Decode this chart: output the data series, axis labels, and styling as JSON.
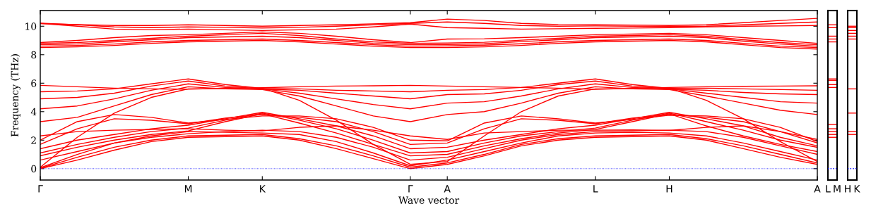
{
  "chart_data": [
    {
      "type": "line",
      "xlabel": "Wave vector",
      "ylabel": "Frequency (THz)",
      "tick_labels": true,
      "categories": [
        "Γ",
        null,
        null,
        null,
        "M",
        null,
        "K",
        null,
        null,
        null,
        "Γ",
        "A",
        null,
        null,
        null,
        "L",
        null,
        "H",
        null,
        null,
        null,
        "A"
      ],
      "ylim": [
        -0.8,
        11.1
      ],
      "yticks": [
        0,
        2,
        4,
        6,
        8,
        10
      ],
      "ref_lines": [
        {
          "axis": "y",
          "value": 0,
          "color": "#0000ff",
          "line_style": "dotted"
        }
      ],
      "series": [
        {
          "color": "#ff0000",
          "values": [
            0,
            0.6,
            1.3,
            1.9,
            2.2,
            2.25,
            2.3,
            2.0,
            1.4,
            0.7,
            0,
            0.3,
            0.9,
            1.6,
            2.0,
            2.2,
            2.25,
            2.3,
            2.0,
            1.4,
            0.8,
            0.3
          ]
        },
        {
          "color": "#ff0000",
          "values": [
            0.03,
            0.8,
            1.5,
            2.0,
            2.3,
            2.35,
            2.4,
            2.1,
            1.6,
            0.9,
            0.1,
            0.4,
            1.0,
            1.7,
            2.1,
            2.3,
            2.35,
            2.4,
            2.1,
            1.6,
            1.0,
            0.4
          ]
        },
        {
          "color": "#ff0000",
          "values": [
            0.06,
            1.0,
            1.8,
            2.3,
            2.6,
            2.55,
            2.5,
            2.4,
            1.9,
            1.1,
            0.2,
            0.6,
            1.2,
            1.8,
            2.3,
            2.5,
            2.55,
            2.5,
            2.3,
            1.8,
            1.2,
            0.6
          ]
        },
        {
          "color": "#ff0000",
          "values": [
            0.6,
            1.2,
            1.8,
            2.2,
            2.45,
            2.6,
            2.7,
            2.6,
            2.2,
            1.5,
            0.6,
            0.8,
            1.4,
            2.0,
            2.4,
            2.6,
            2.65,
            2.7,
            2.6,
            2.2,
            1.6,
            1.0
          ]
        },
        {
          "color": "#ff0000",
          "values": [
            0.9,
            1.5,
            2.0,
            2.4,
            2.65,
            3.3,
            3.85,
            3.2,
            2.5,
            1.7,
            0.9,
            1.0,
            1.6,
            2.1,
            2.5,
            2.75,
            3.3,
            3.85,
            3.0,
            2.3,
            1.7,
            1.2
          ]
        },
        {
          "color": "#ff0000",
          "values": [
            1.1,
            1.7,
            2.2,
            2.6,
            2.85,
            3.4,
            3.9,
            3.4,
            2.8,
            2.0,
            1.1,
            1.2,
            1.8,
            2.3,
            2.6,
            2.85,
            3.4,
            3.9,
            3.3,
            2.7,
            2.0,
            1.5
          ]
        },
        {
          "color": "#ff0000",
          "values": [
            1.4,
            2.0,
            2.4,
            2.8,
            3.05,
            3.5,
            3.95,
            3.5,
            3.0,
            2.3,
            1.4,
            1.5,
            2.0,
            2.4,
            2.8,
            3.05,
            3.5,
            3.95,
            3.5,
            3.0,
            2.2,
            1.6
          ]
        },
        {
          "color": "#ff0000",
          "values": [
            1.7,
            2.8,
            3.5,
            3.4,
            3.15,
            3.55,
            3.8,
            3.6,
            3.3,
            2.6,
            1.7,
            1.8,
            2.8,
            3.5,
            3.4,
            3.15,
            3.55,
            3.8,
            3.6,
            3.3,
            2.6,
            1.8
          ]
        },
        {
          "color": "#ff0000",
          "values": [
            2.0,
            3.3,
            3.8,
            3.6,
            3.2,
            3.45,
            3.7,
            3.7,
            3.5,
            2.9,
            2.0,
            1.95,
            3.2,
            3.7,
            3.5,
            3.2,
            3.45,
            3.75,
            3.7,
            3.5,
            2.9,
            1.9
          ]
        },
        {
          "color": "#ff0000",
          "values": [
            2.3,
            2.6,
            2.7,
            2.75,
            2.8,
            2.7,
            2.65,
            2.9,
            3.0,
            2.7,
            2.3,
            2.05,
            2.5,
            2.6,
            2.7,
            2.7,
            2.72,
            2.68,
            2.9,
            3.0,
            2.6,
            2.05
          ]
        },
        {
          "color": "#ff0000",
          "values": [
            0.09,
            2.2,
            3.9,
            5.0,
            5.6,
            5.62,
            5.65,
            4.8,
            3.4,
            1.7,
            0.3,
            0.5,
            2.3,
            4.0,
            5.1,
            5.6,
            5.62,
            5.65,
            4.8,
            3.5,
            1.9,
            0.5
          ]
        },
        {
          "color": "#ff0000",
          "values": [
            3.3,
            3.6,
            4.4,
            5.2,
            5.75,
            5.6,
            5.55,
            5.1,
            4.4,
            3.7,
            3.3,
            3.8,
            4.0,
            4.6,
            5.3,
            5.75,
            5.6,
            5.55,
            5.1,
            4.6,
            4.1,
            3.8
          ]
        },
        {
          "color": "#ff0000",
          "values": [
            4.2,
            4.4,
            4.9,
            5.5,
            5.95,
            5.7,
            5.6,
            5.3,
            4.9,
            4.5,
            4.2,
            4.6,
            4.7,
            5.1,
            5.6,
            5.95,
            5.7,
            5.6,
            5.3,
            5.0,
            4.7,
            4.6
          ]
        },
        {
          "color": "#ff0000",
          "values": [
            4.9,
            5.0,
            5.3,
            5.8,
            6.15,
            5.8,
            5.58,
            5.5,
            5.3,
            5.1,
            4.9,
            5.2,
            5.25,
            5.5,
            5.9,
            6.15,
            5.8,
            5.58,
            5.5,
            5.35,
            5.25,
            5.2
          ]
        },
        {
          "color": "#ff0000",
          "values": [
            5.4,
            5.45,
            5.6,
            5.95,
            6.3,
            5.9,
            5.63,
            5.6,
            5.5,
            5.45,
            5.4,
            5.5,
            5.55,
            5.7,
            6.0,
            6.3,
            5.9,
            5.63,
            5.65,
            5.6,
            5.55,
            5.5
          ]
        },
        {
          "color": "#ff0000",
          "values": [
            5.85,
            5.75,
            5.65,
            5.6,
            5.58,
            5.64,
            5.68,
            5.75,
            5.8,
            5.82,
            5.85,
            5.8,
            5.75,
            5.7,
            5.65,
            5.57,
            5.64,
            5.7,
            5.75,
            5.78,
            5.8,
            5.82
          ]
        },
        {
          "color": "#ff0000",
          "values": [
            8.5,
            8.55,
            8.65,
            8.8,
            8.9,
            8.95,
            9.0,
            8.9,
            8.75,
            8.6,
            8.5,
            8.5,
            8.55,
            8.65,
            8.8,
            8.9,
            8.95,
            9.0,
            8.9,
            8.7,
            8.5,
            8.4
          ]
        },
        {
          "color": "#ff0000",
          "values": [
            8.6,
            8.65,
            8.75,
            8.9,
            9.0,
            9.05,
            9.1,
            9.0,
            8.85,
            8.7,
            8.6,
            8.62,
            8.67,
            8.77,
            8.9,
            9.0,
            9.05,
            9.1,
            9.0,
            8.8,
            8.6,
            8.5
          ]
        },
        {
          "color": "#ff0000",
          "values": [
            8.7,
            8.75,
            8.9,
            9.05,
            9.2,
            9.25,
            9.3,
            9.2,
            9.0,
            8.8,
            8.7,
            8.72,
            8.77,
            8.92,
            9.05,
            9.2,
            9.25,
            9.3,
            9.2,
            8.95,
            8.75,
            8.6
          ]
        },
        {
          "color": "#ff0000",
          "values": [
            8.8,
            8.85,
            9.0,
            9.15,
            9.3,
            9.4,
            9.5,
            9.35,
            9.1,
            8.9,
            8.8,
            8.82,
            8.87,
            9.02,
            9.15,
            9.3,
            9.35,
            9.4,
            9.3,
            9.05,
            8.85,
            8.7
          ]
        },
        {
          "color": "#ff0000",
          "values": [
            8.85,
            9.0,
            9.2,
            9.35,
            9.4,
            9.5,
            9.6,
            9.5,
            9.3,
            9.05,
            8.85,
            9.1,
            9.12,
            9.2,
            9.3,
            9.4,
            9.45,
            9.5,
            9.4,
            9.2,
            9.0,
            8.8
          ]
        },
        {
          "color": "#ff0000",
          "values": [
            10.2,
            10.0,
            9.8,
            9.75,
            9.8,
            9.75,
            9.7,
            9.75,
            9.8,
            9.95,
            10.15,
            9.9,
            9.85,
            9.8,
            9.82,
            9.85,
            9.87,
            9.9,
            9.95,
            10.0,
            10.02,
            10.05
          ]
        },
        {
          "color": "#ff0000",
          "values": [
            10.22,
            10.1,
            9.95,
            9.9,
            9.95,
            9.92,
            9.88,
            9.92,
            10.0,
            10.1,
            10.2,
            10.3,
            10.2,
            10.05,
            10.0,
            10.02,
            10.0,
            9.98,
            10.0,
            10.1,
            10.2,
            10.3
          ]
        },
        {
          "color": "#ff0000",
          "values": [
            10.18,
            10.12,
            10.05,
            10.05,
            10.1,
            10.05,
            10.0,
            10.05,
            10.1,
            10.17,
            10.25,
            10.5,
            10.4,
            10.2,
            10.12,
            10.1,
            10.08,
            10.05,
            10.1,
            10.25,
            10.4,
            10.55
          ]
        }
      ]
    },
    {
      "type": "line",
      "tick_labels": "x",
      "categories": [
        "L",
        "M"
      ],
      "ylim": [
        -0.8,
        11.1
      ],
      "ref_lines": [
        {
          "axis": "y",
          "value": 0,
          "color": "#0000ff",
          "line_style": "dotted"
        }
      ],
      "series": [
        {
          "color": "#ff0000",
          "values": [
            2.2,
            2.2
          ]
        },
        {
          "color": "#ff0000",
          "values": [
            2.4,
            2.4
          ]
        },
        {
          "color": "#ff0000",
          "values": [
            2.6,
            2.6
          ]
        },
        {
          "color": "#ff0000",
          "values": [
            2.8,
            2.8
          ]
        },
        {
          "color": "#ff0000",
          "values": [
            3.1,
            3.1
          ]
        },
        {
          "color": "#ff0000",
          "values": [
            5.7,
            5.7
          ]
        },
        {
          "color": "#ff0000",
          "values": [
            5.9,
            5.9
          ]
        },
        {
          "color": "#ff0000",
          "values": [
            6.2,
            6.2
          ]
        },
        {
          "color": "#ff0000",
          "values": [
            6.3,
            6.3
          ]
        },
        {
          "color": "#ff0000",
          "values": [
            8.9,
            8.9
          ]
        },
        {
          "color": "#ff0000",
          "values": [
            9.1,
            9.1
          ]
        },
        {
          "color": "#ff0000",
          "values": [
            9.3,
            9.3
          ]
        },
        {
          "color": "#ff0000",
          "values": [
            9.9,
            9.9
          ]
        },
        {
          "color": "#ff0000",
          "values": [
            10.1,
            10.1
          ]
        }
      ]
    },
    {
      "type": "line",
      "tick_labels": "x",
      "categories": [
        "H",
        "K"
      ],
      "ylim": [
        -0.8,
        11.1
      ],
      "ref_lines": [
        {
          "axis": "y",
          "value": 0,
          "color": "#0000ff",
          "line_style": "dotted"
        }
      ],
      "series": [
        {
          "color": "#ff0000",
          "values": [
            2.4,
            2.4
          ]
        },
        {
          "color": "#ff0000",
          "values": [
            2.6,
            2.6
          ]
        },
        {
          "color": "#ff0000",
          "values": [
            3.9,
            3.9
          ]
        },
        {
          "color": "#ff0000",
          "values": [
            5.6,
            5.6
          ]
        },
        {
          "color": "#ff0000",
          "values": [
            9.1,
            9.1
          ]
        },
        {
          "color": "#ff0000",
          "values": [
            9.3,
            9.3
          ]
        },
        {
          "color": "#ff0000",
          "values": [
            9.5,
            9.5
          ]
        },
        {
          "color": "#ff0000",
          "values": [
            9.7,
            9.7
          ]
        },
        {
          "color": "#ff0000",
          "values": [
            9.9,
            9.9
          ]
        },
        {
          "color": "#ff0000",
          "values": [
            10.0,
            10.0
          ]
        }
      ]
    }
  ]
}
